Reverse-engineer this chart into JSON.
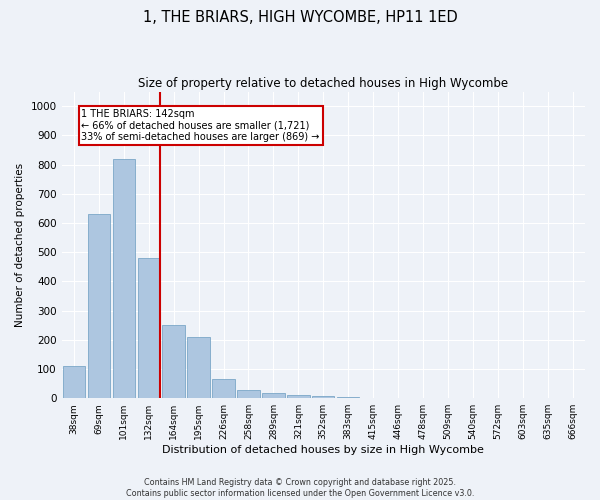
{
  "title": "1, THE BRIARS, HIGH WYCOMBE, HP11 1ED",
  "subtitle": "Size of property relative to detached houses in High Wycombe",
  "xlabel": "Distribution of detached houses by size in High Wycombe",
  "ylabel": "Number of detached properties",
  "categories": [
    "38sqm",
    "69sqm",
    "101sqm",
    "132sqm",
    "164sqm",
    "195sqm",
    "226sqm",
    "258sqm",
    "289sqm",
    "321sqm",
    "352sqm",
    "383sqm",
    "415sqm",
    "446sqm",
    "478sqm",
    "509sqm",
    "540sqm",
    "572sqm",
    "603sqm",
    "635sqm",
    "666sqm"
  ],
  "values": [
    110,
    630,
    820,
    480,
    250,
    210,
    65,
    27,
    18,
    10,
    8,
    5,
    0,
    0,
    0,
    0,
    0,
    0,
    0,
    0,
    0
  ],
  "bar_color": "#adc6e0",
  "bar_edge_color": "#6a9dc0",
  "redline_index": 3,
  "annotation_title": "1 THE BRIARS: 142sqm",
  "annotation_line1": "← 66% of detached houses are smaller (1,721)",
  "annotation_line2": "33% of semi-detached houses are larger (869) →",
  "annotation_box_color": "#cc0000",
  "ylim": [
    0,
    1050
  ],
  "yticks": [
    0,
    100,
    200,
    300,
    400,
    500,
    600,
    700,
    800,
    900,
    1000
  ],
  "bg_color": "#eef2f8",
  "grid_color": "#ffffff",
  "footer": "Contains HM Land Registry data © Crown copyright and database right 2025.\nContains public sector information licensed under the Open Government Licence v3.0."
}
